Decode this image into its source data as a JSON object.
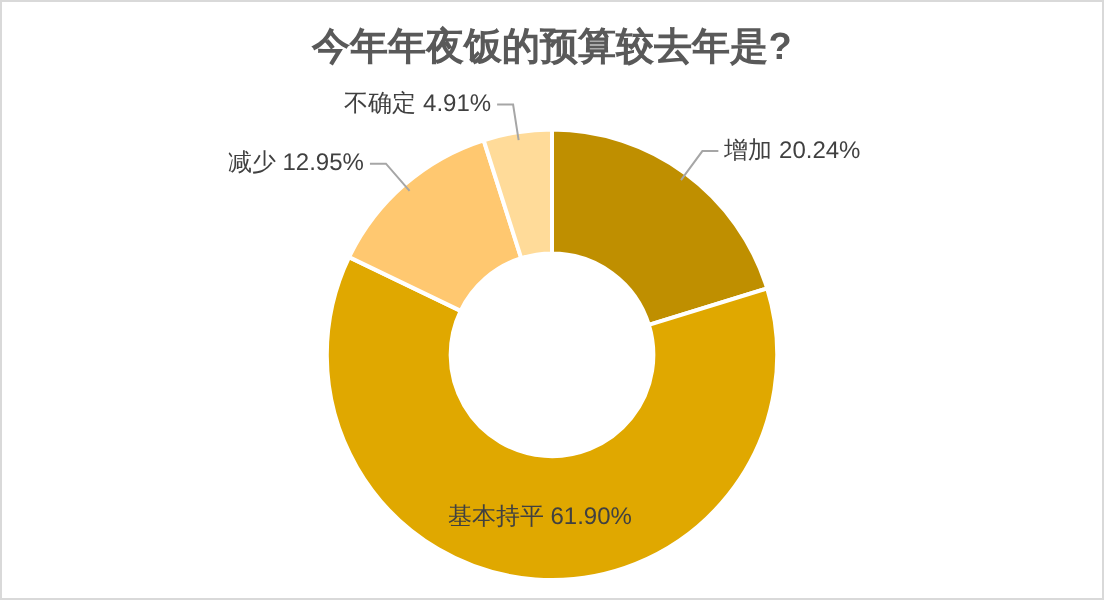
{
  "chart_data": {
    "type": "donut",
    "title": "今年年夜饭的预算较去年是?",
    "categories": [
      "增加",
      "基本持平",
      "减少",
      "不确定"
    ],
    "values": [
      20.24,
      61.9,
      12.95,
      4.91
    ],
    "value_labels": [
      "20.24%",
      "61.90%",
      "12.95%",
      "4.91%"
    ],
    "colors": [
      "#bf8f00",
      "#e0a800",
      "#ffc870",
      "#ffdb99"
    ],
    "legend": false
  }
}
